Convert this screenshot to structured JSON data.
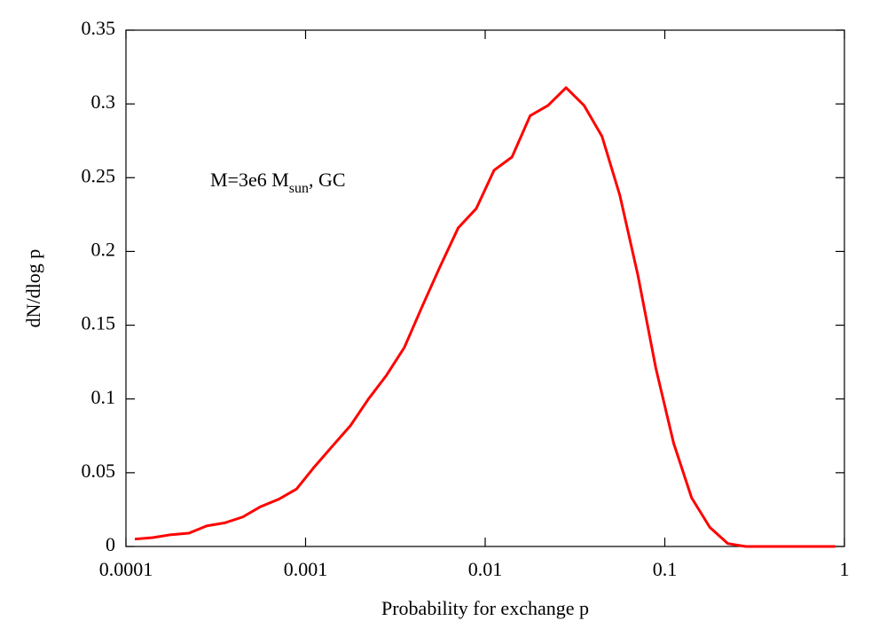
{
  "chart_data": {
    "type": "line",
    "xlabel": "Probability for exchange p",
    "ylabel": "dN/dlog p",
    "annotation": {
      "text": "M=3e6 M",
      "subscript": "sun",
      "tail": ", GC"
    },
    "xscale": "log",
    "xlim": [
      0.0001,
      1
    ],
    "xticks": [
      0.0001,
      0.001,
      0.01,
      0.1,
      1
    ],
    "ylim": [
      0,
      0.35
    ],
    "yticks": [
      0,
      0.05,
      0.1,
      0.15,
      0.2,
      0.25,
      0.3,
      0.35
    ],
    "x": [
      0.000112,
      0.000141,
      0.000178,
      0.000224,
      0.000282,
      0.000355,
      0.000447,
      0.000562,
      0.000708,
      0.000891,
      0.00112,
      0.00141,
      0.00178,
      0.00224,
      0.00282,
      0.00355,
      0.00447,
      0.00562,
      0.00708,
      0.00891,
      0.0112,
      0.0141,
      0.0178,
      0.0224,
      0.0282,
      0.0355,
      0.0447,
      0.0562,
      0.0708,
      0.0891,
      0.112,
      0.141,
      0.178,
      0.224,
      0.282,
      0.355,
      0.447,
      0.562,
      0.708,
      0.891
    ],
    "series": [
      {
        "color": "#ff0000",
        "values": [
          0.005,
          0.006,
          0.008,
          0.009,
          0.014,
          0.016,
          0.02,
          0.027,
          0.032,
          0.039,
          0.054,
          0.068,
          0.082,
          0.1,
          0.116,
          0.135,
          0.163,
          0.19,
          0.216,
          0.229,
          0.255,
          0.264,
          0.292,
          0.299,
          0.311,
          0.299,
          0.278,
          0.238,
          0.184,
          0.121,
          0.07,
          0.033,
          0.013,
          0.002,
          0,
          0,
          0,
          0,
          0,
          0
        ]
      }
    ]
  }
}
